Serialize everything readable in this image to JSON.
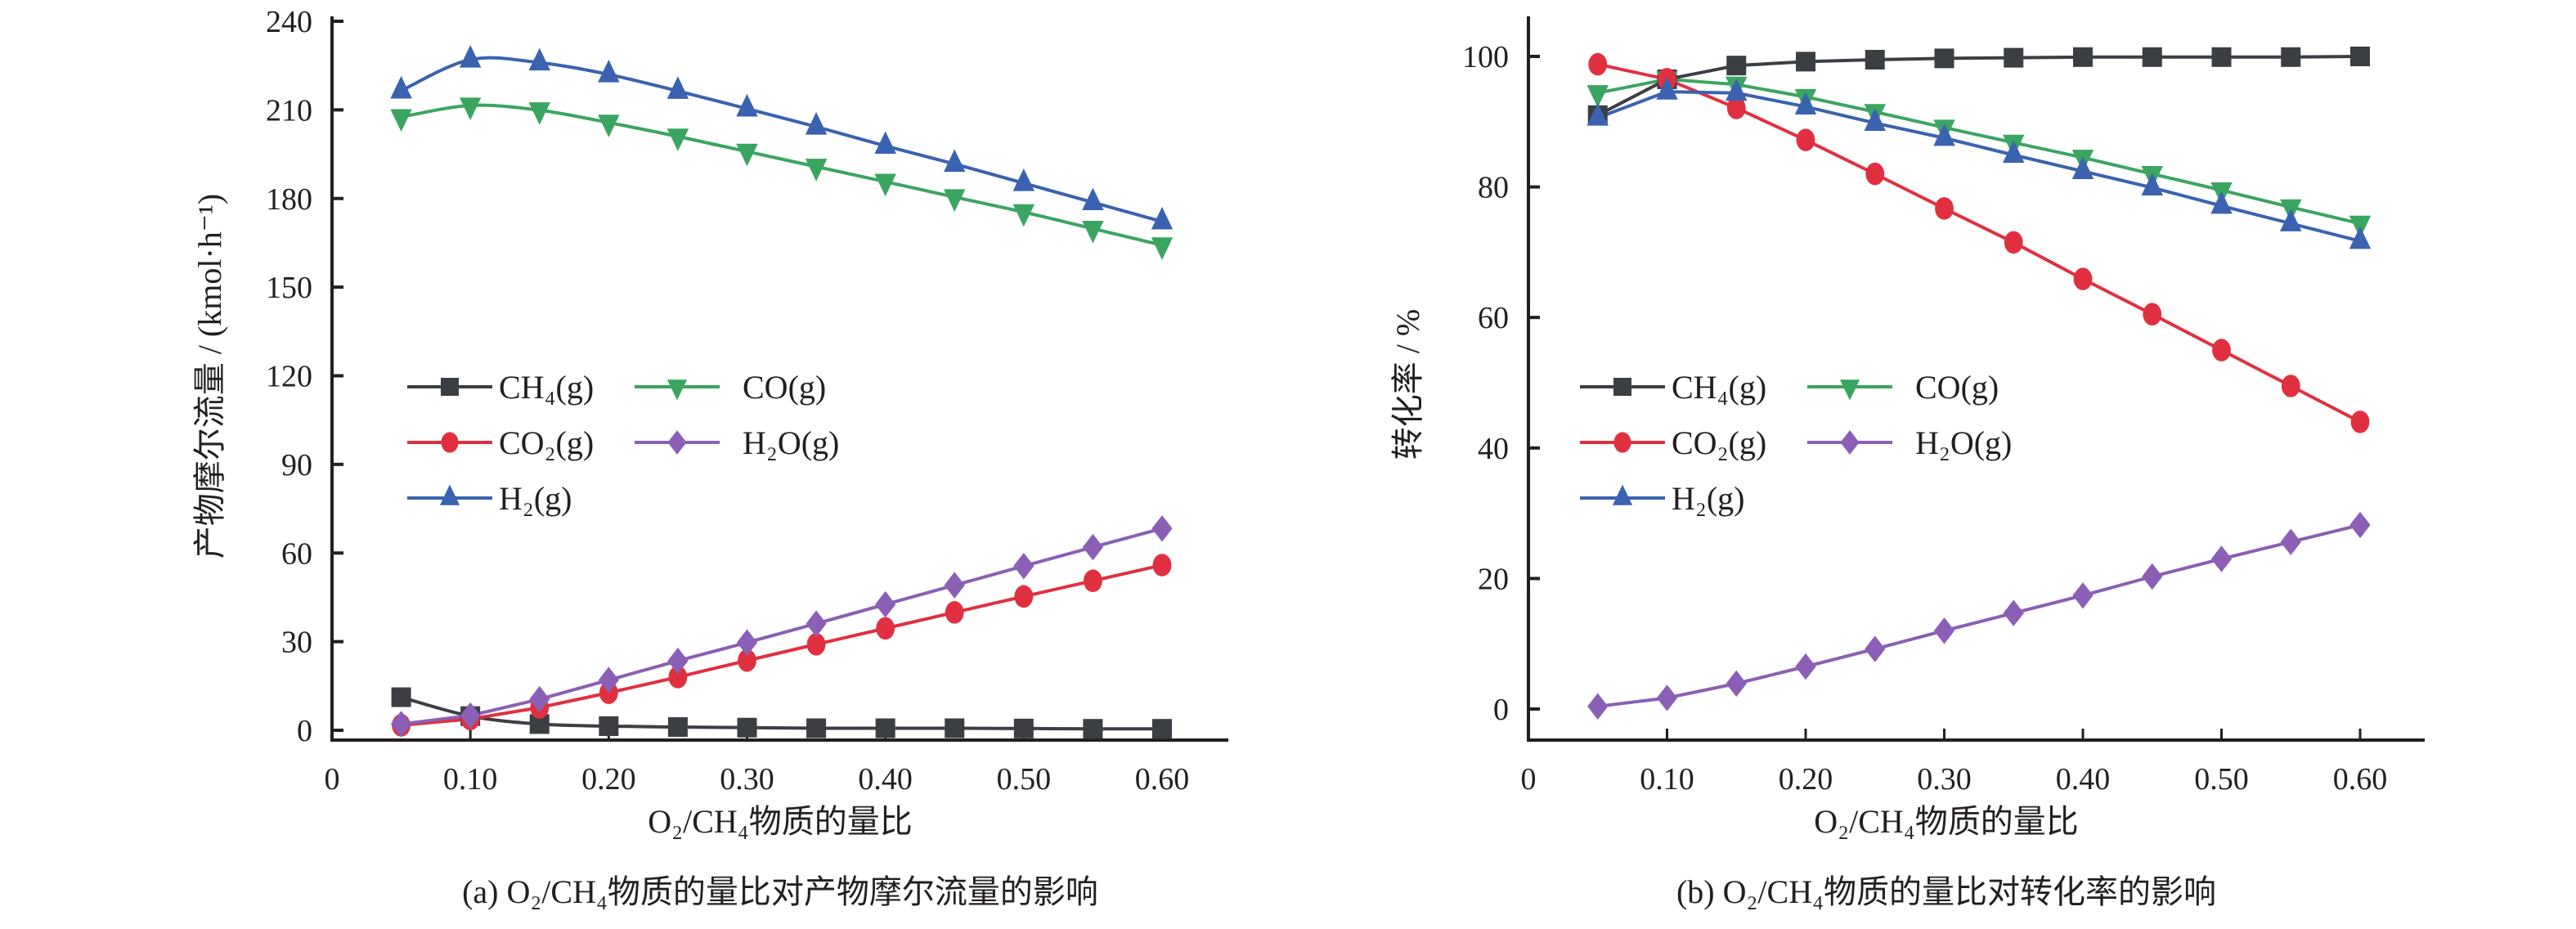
{
  "chart_data": [
    {
      "id": "a",
      "type": "line",
      "caption": "(a) O₂/CH₄物质的量比对产物摩尔流量的影响",
      "xlabel": "O₂/CH₄物质的量比",
      "ylabel": "产物摩尔流量 / (kmol·h⁻¹)",
      "xlim": [
        0,
        0.65
      ],
      "ylim": [
        0,
        240
      ],
      "xticks": [
        0,
        0.1,
        0.2,
        0.3,
        0.4,
        0.5,
        0.6
      ],
      "xtick_labels": [
        "0",
        "0.10",
        "0.20",
        "0.30",
        "0.40",
        "0.50",
        "0.60"
      ],
      "yticks": [
        0,
        30,
        60,
        90,
        120,
        150,
        180,
        210,
        240
      ],
      "ytick_labels": [
        "0",
        "30",
        "60",
        "90",
        "120",
        "150",
        "180",
        "210",
        "240"
      ],
      "grid": false,
      "legend_placement": "center-left",
      "x": [
        0.05,
        0.1,
        0.15,
        0.2,
        0.25,
        0.3,
        0.35,
        0.4,
        0.45,
        0.5,
        0.55,
        0.6
      ],
      "series": [
        {
          "name": "CH₄(g)",
          "marker": "square",
          "color": "#3b3e42",
          "smooth": true,
          "values": [
            11.2,
            4.8,
            2.1,
            1.4,
            1.1,
            0.9,
            0.7,
            0.7,
            0.7,
            0.6,
            0.5,
            0.5
          ]
        },
        {
          "name": "CO(g)",
          "marker": "triangle-down",
          "color": "#3aa560",
          "smooth": true,
          "values": [
            207.6,
            211.5,
            209.9,
            205.7,
            201.0,
            195.9,
            190.8,
            185.7,
            180.5,
            175.4,
            169.8,
            164.2
          ]
        },
        {
          "name": "CO₂(g)",
          "marker": "circle",
          "color": "#e0303f",
          "smooth": false,
          "values": [
            1.7,
            3.8,
            7.7,
            12.7,
            18.0,
            23.6,
            29.1,
            34.5,
            39.9,
            45.3,
            50.6,
            55.9
          ]
        },
        {
          "name": "H₂O(g)",
          "marker": "diamond",
          "color": "#8a5fb5",
          "smooth": false,
          "values": [
            2.1,
            5.0,
            10.5,
            17.0,
            23.5,
            29.7,
            36.1,
            42.6,
            49.1,
            55.6,
            62.0,
            68.3
          ]
        },
        {
          "name": "H₂(g)",
          "marker": "triangle-up",
          "color": "#3a62b0",
          "smooth": true,
          "values": [
            216.5,
            227.0,
            226.0,
            222.0,
            216.4,
            210.4,
            204.3,
            197.8,
            191.7,
            185.2,
            178.7,
            172.2
          ]
        }
      ]
    },
    {
      "id": "b",
      "type": "line",
      "caption": "(b) O₂/CH₄物质的量比对转化率的影响",
      "xlabel": "O₂/CH₄物质的量比",
      "ylabel": "转化率 / %",
      "xlim": [
        0,
        0.65
      ],
      "ylim": [
        0,
        100
      ],
      "xticks": [
        0,
        0.1,
        0.2,
        0.3,
        0.4,
        0.5,
        0.6
      ],
      "xtick_labels": [
        "0",
        "0.10",
        "0.20",
        "0.30",
        "0.40",
        "0.50",
        "0.60"
      ],
      "yticks": [
        0,
        20,
        40,
        60,
        80,
        100
      ],
      "ytick_labels": [
        "0",
        "20",
        "40",
        "60",
        "80",
        "100"
      ],
      "grid": false,
      "legend_placement": "center-left",
      "x": [
        0.05,
        0.1,
        0.15,
        0.2,
        0.25,
        0.3,
        0.35,
        0.4,
        0.45,
        0.5,
        0.55,
        0.6
      ],
      "series": [
        {
          "name": "CH₄(g)",
          "marker": "square",
          "color": "#3b3e42",
          "smooth": false,
          "values": [
            91.0,
            96.5,
            98.6,
            99.2,
            99.5,
            99.7,
            99.8,
            99.9,
            99.9,
            99.9,
            99.9,
            100.0
          ]
        },
        {
          "name": "CO(g)",
          "marker": "triangle-down",
          "color": "#3aa560",
          "smooth": false,
          "values": [
            94.4,
            96.5,
            95.7,
            93.8,
            91.5,
            89.1,
            86.8,
            84.5,
            82.0,
            79.5,
            76.9,
            74.4
          ]
        },
        {
          "name": "CO₂(g)",
          "marker": "circle",
          "color": "#e0303f",
          "smooth": false,
          "values": [
            98.8,
            96.5,
            92.1,
            87.2,
            82.0,
            76.7,
            71.5,
            65.9,
            60.5,
            55.0,
            49.5,
            44.0
          ]
        },
        {
          "name": "H₂O(g)",
          "marker": "diamond",
          "color": "#8a5fb5",
          "smooth": false,
          "values": [
            0.4,
            1.7,
            3.9,
            6.5,
            9.2,
            12.0,
            14.7,
            17.4,
            20.3,
            23.0,
            25.6,
            28.2
          ]
        },
        {
          "name": "H₂(g)",
          "marker": "triangle-up",
          "color": "#3a62b0",
          "smooth": false,
          "values": [
            90.6,
            94.6,
            94.4,
            92.3,
            89.8,
            87.5,
            84.9,
            82.4,
            79.9,
            77.1,
            74.4,
            71.7
          ]
        }
      ]
    }
  ]
}
